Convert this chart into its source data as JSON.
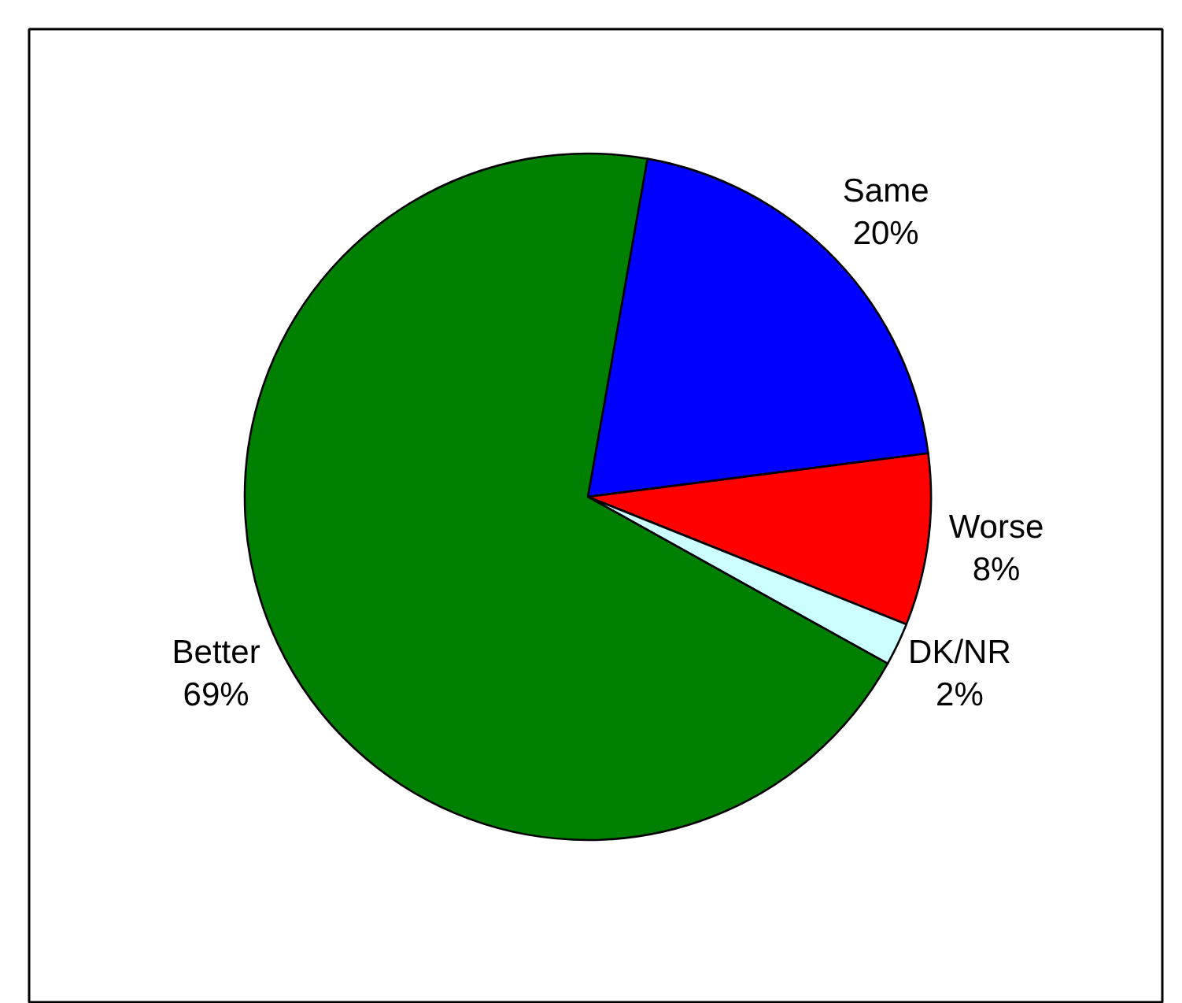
{
  "chart_data": {
    "type": "pie",
    "categories": [
      "Same",
      "Worse",
      "DK/NR",
      "Better"
    ],
    "values": [
      20,
      8,
      2,
      69
    ],
    "colors": [
      "#0000ff",
      "#ff0000",
      "#ccffff",
      "#008000"
    ],
    "value_labels": [
      "20%",
      "8%",
      "2%",
      "69%"
    ]
  }
}
